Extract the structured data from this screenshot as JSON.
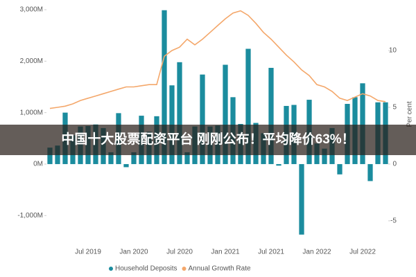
{
  "chart_data": {
    "type": "bar-line",
    "annotation": "中国十大股票配资平台 刚刚公布！平均降价63%！",
    "categories": [
      null,
      null,
      null,
      null,
      null,
      "Jul 2019",
      null,
      null,
      null,
      null,
      null,
      "Jan 2020",
      null,
      null,
      null,
      null,
      null,
      "Jul 2020",
      null,
      null,
      null,
      null,
      null,
      "Jan 2021",
      null,
      null,
      null,
      null,
      null,
      "Jul 2021",
      null,
      null,
      null,
      null,
      null,
      "Jan 2022",
      null,
      null,
      null,
      null,
      null,
      "Jul 2022",
      null,
      null,
      null
    ],
    "series": [
      {
        "name": "Household Deposits",
        "color": "#1b8c9e",
        "values": [
          320,
          360,
          1000,
          560,
          730,
          740,
          770,
          700,
          230,
          990,
          -60,
          230,
          940,
          630,
          930,
          2990,
          1530,
          1980,
          230,
          730,
          1740,
          730,
          750,
          1930,
          1300,
          780,
          2240,
          800,
          600,
          1870,
          -30,
          1130,
          1150,
          -1370,
          1250,
          400,
          300,
          700,
          -200,
          1170,
          1300,
          1570,
          -330,
          1200,
          1200
        ]
      },
      {
        "name": "Annual Growth Rate",
        "color": "#f4a76a",
        "axis": "y2",
        "values": [
          4.9,
          5.0,
          5.1,
          5.3,
          5.6,
          5.8,
          6.0,
          6.2,
          6.4,
          6.6,
          6.8,
          6.8,
          6.9,
          7.0,
          7.0,
          9.5,
          10.0,
          10.3,
          11.0,
          10.5,
          11.0,
          11.6,
          12.2,
          12.8,
          13.3,
          13.5,
          13.1,
          12.4,
          11.6,
          11.0,
          10.3,
          9.6,
          9.0,
          8.3,
          7.8,
          7.0,
          6.8,
          6.4,
          5.8,
          5.6,
          5.9,
          6.2,
          6.0,
          5.6,
          5.5
        ]
      }
    ],
    "ylim": [
      -1400,
      3000
    ],
    "yticks": [
      {
        "value": -1000,
        "label": "-1,000M"
      },
      {
        "value": 0,
        "label": "0M"
      },
      {
        "value": 1000,
        "label": "1,000M"
      },
      {
        "value": 2000,
        "label": "2,000M"
      },
      {
        "value": 3000,
        "label": "3,000M"
      }
    ],
    "y2lim": [
      -6.35,
      13.6
    ],
    "y2ticks": [
      -5,
      0,
      5,
      10
    ],
    "y2label": "Per cent",
    "legend": "bottom"
  }
}
